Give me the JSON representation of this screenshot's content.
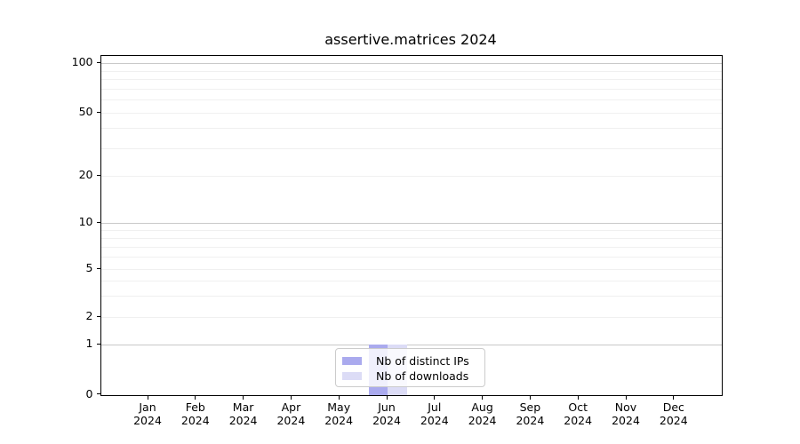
{
  "title": "assertive.matrices 2024",
  "chart_data": {
    "type": "bar",
    "title": "assertive.matrices 2024",
    "categories": [
      "Jan",
      "Feb",
      "Mar",
      "Apr",
      "May",
      "Jun",
      "Jul",
      "Aug",
      "Sep",
      "Oct",
      "Nov",
      "Dec"
    ],
    "year_label": "2024",
    "series": [
      {
        "name": "Nb of distinct IPs",
        "color": "#aaaaee",
        "values": [
          0,
          0,
          0,
          0,
          0,
          1,
          0,
          0,
          0,
          0,
          0,
          0
        ]
      },
      {
        "name": "Nb of downloads",
        "color": "#dcdcf6",
        "values": [
          0,
          0,
          0,
          0,
          0,
          1,
          0,
          0,
          0,
          0,
          0,
          0
        ]
      }
    ],
    "xlabel": "",
    "ylabel": "",
    "ylim": [
      0,
      112
    ],
    "y_scale": "log-with-zero",
    "y_ticks": [
      100,
      50,
      20,
      10,
      5,
      2,
      1,
      0
    ],
    "y_minor_gridlines": [
      90,
      80,
      70,
      60,
      40,
      30,
      9,
      8,
      7,
      6,
      4,
      3
    ],
    "grid": true,
    "legend_position": "lower center",
    "colors": {
      "grid_major": "#c9c9c9",
      "grid_minor": "#f0f0f0",
      "spine": "#000000",
      "text": "#000000",
      "background": "#ffffff"
    }
  }
}
